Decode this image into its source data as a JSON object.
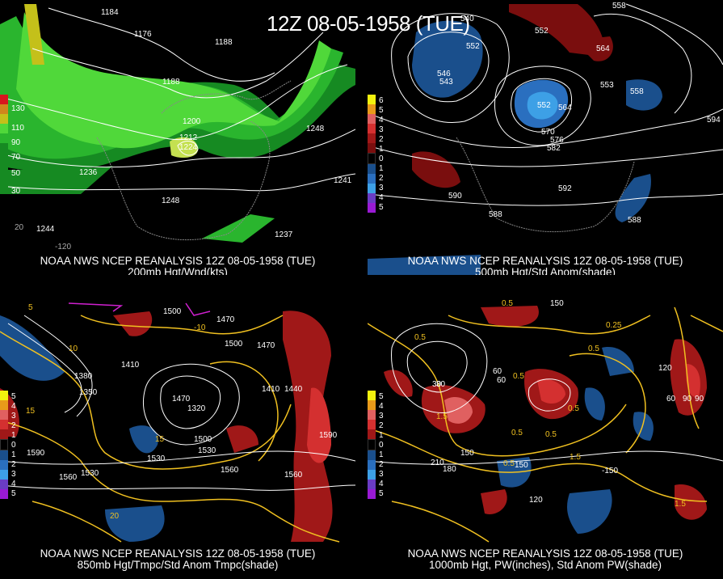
{
  "header": {
    "title": "12Z 08-05-1958 (TUE)"
  },
  "panels": [
    {
      "id": "p200",
      "caption_line1": "NOAA NWS NCEP REANALYSIS 12Z 08-05-1958 (TUE)",
      "caption_line2": "200mb Hgt/Wnd(kts)",
      "legend": [
        {
          "label": "130",
          "color": "#d8161e"
        },
        {
          "label": "110",
          "color": "#d0861c"
        },
        {
          "label": "90",
          "color": "#c4c01a"
        },
        {
          "label": "70",
          "color": "#50d83a"
        },
        {
          "label": "50",
          "color": "#2ab52e"
        },
        {
          "label": "30",
          "color": "#168a22"
        }
      ],
      "labels": [
        "1184",
        "1176",
        "1188",
        "1188",
        "1200",
        "1212",
        "1224",
        "1236",
        "1248",
        "1248",
        "1244",
        "1237",
        "1241",
        "-120",
        "20"
      ]
    },
    {
      "id": "p500",
      "caption_line1": "NOAA NWS NCEP REANALYSIS 12Z 08-05-1958 (TUE)",
      "caption_line2": "500mb Hgt/Std Anom(shade)",
      "legend": [
        {
          "label": "6",
          "color": "#f2f20e"
        },
        {
          "label": "5",
          "color": "#e89a1a"
        },
        {
          "label": "4",
          "color": "#e06060"
        },
        {
          "label": "3",
          "color": "#d43030"
        },
        {
          "label": "2",
          "color": "#a01818"
        },
        {
          "label": "1",
          "color": "#7a0e0e"
        },
        {
          "label": "0",
          "color": "#000000"
        },
        {
          "label": "1",
          "color": "#1a4f8c"
        },
        {
          "label": "2",
          "color": "#2a6fbf"
        },
        {
          "label": "3",
          "color": "#3da0e6"
        },
        {
          "label": "4",
          "color": "#6a3cc4"
        },
        {
          "label": "5",
          "color": "#9a1ad4"
        }
      ],
      "labels": [
        "540",
        "552",
        "546",
        "558",
        "564",
        "552",
        "552",
        "564",
        "558",
        "570",
        "576",
        "582",
        "588",
        "588",
        "592",
        "590",
        "594",
        "553",
        "543"
      ]
    },
    {
      "id": "p850",
      "caption_line1": "NOAA NWS NCEP REANALYSIS 12Z 08-05-1958 (TUE)",
      "caption_line2": "850mb Hgt/Tmpc/Std Anom Tmpc(shade)",
      "legend": [
        {
          "label": "5",
          "color": "#f2f20e"
        },
        {
          "label": "4",
          "color": "#e89a1a"
        },
        {
          "label": "3",
          "color": "#e06060"
        },
        {
          "label": "2",
          "color": "#d43030"
        },
        {
          "label": "1",
          "color": "#a01818"
        },
        {
          "label": "0",
          "color": "#000000"
        },
        {
          "label": "1",
          "color": "#1a4f8c"
        },
        {
          "label": "2",
          "color": "#2a6fbf"
        },
        {
          "label": "3",
          "color": "#3da0e6"
        },
        {
          "label": "4",
          "color": "#6a3cc4"
        },
        {
          "label": "5",
          "color": "#9a1ad4"
        }
      ],
      "labels": [
        "1500",
        "1470",
        "1500",
        "1410",
        "1470",
        "1410",
        "1440",
        "1380",
        "1350",
        "1320",
        "1470",
        "1590",
        "1500",
        "1530",
        "1530",
        "1560",
        "1590",
        "1530",
        "1560",
        "1560",
        "15",
        "20",
        "-10",
        "10",
        "15",
        "5"
      ]
    },
    {
      "id": "p1000",
      "caption_line1": "NOAA NWS NCEP REANALYSIS 12Z 08-05-1958 (TUE)",
      "caption_line2": "1000mb Hgt, PW(inches), Std Anom PW(shade)",
      "legend": [
        {
          "label": "5",
          "color": "#f2f20e"
        },
        {
          "label": "4",
          "color": "#e89a1a"
        },
        {
          "label": "3",
          "color": "#e06060"
        },
        {
          "label": "2",
          "color": "#d43030"
        },
        {
          "label": "1",
          "color": "#a01818"
        },
        {
          "label": "0",
          "color": "#000000"
        },
        {
          "label": "1",
          "color": "#1a4f8c"
        },
        {
          "label": "2",
          "color": "#2a6fbf"
        },
        {
          "label": "3",
          "color": "#3da0e6"
        },
        {
          "label": "4",
          "color": "#6a3cc4"
        },
        {
          "label": "5",
          "color": "#9a1ad4"
        }
      ],
      "labels": [
        "150",
        "0.5",
        "0.25",
        "0.5",
        "0.5",
        "60",
        "30",
        "0.5",
        "90",
        "1.5",
        "120",
        "60",
        "90",
        "0.5",
        "0.5",
        "-150",
        "1.5",
        "150",
        "180",
        "210",
        "150",
        "120",
        "0.5",
        "1.5",
        "0.5",
        "30",
        "60"
      ]
    }
  ]
}
